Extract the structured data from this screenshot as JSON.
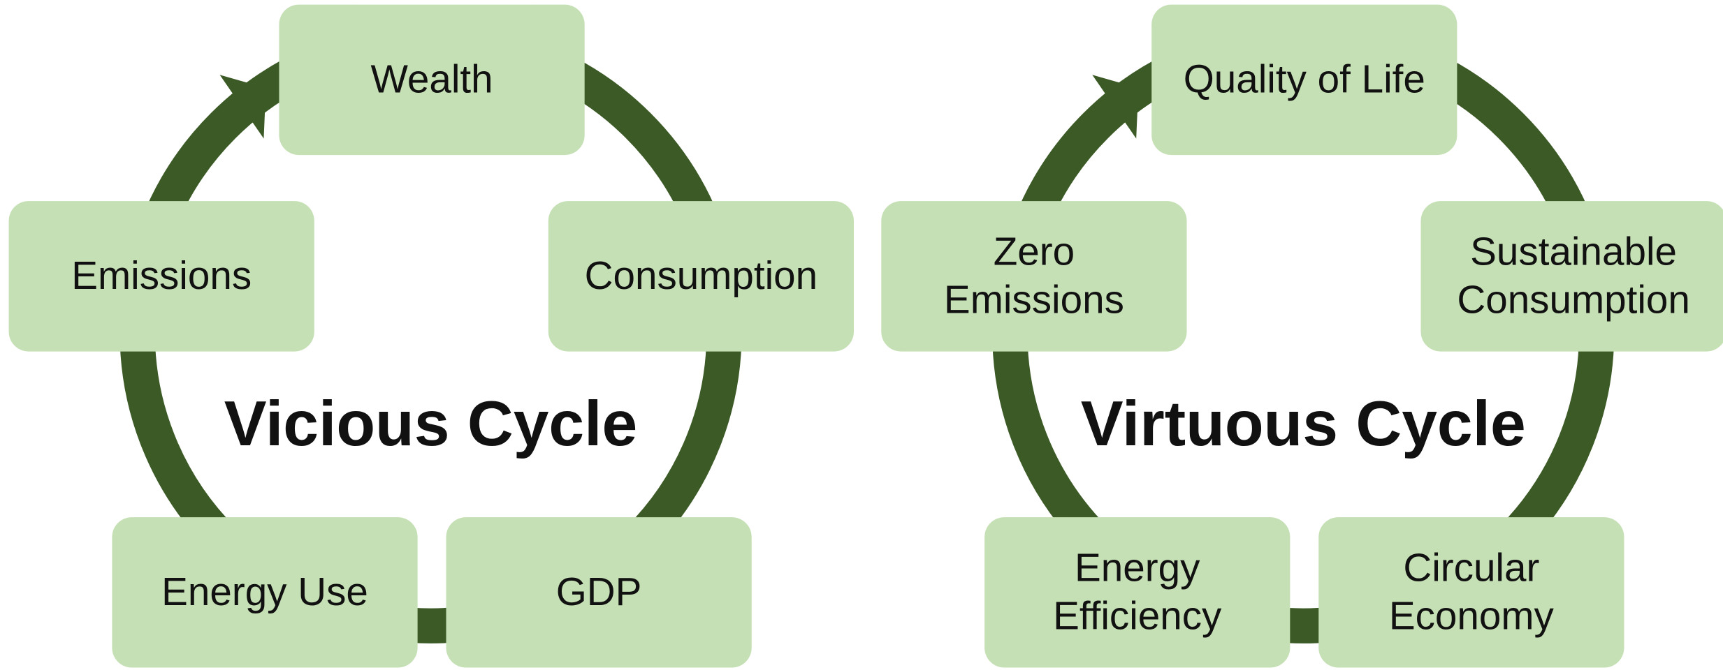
{
  "diagrams": [
    {
      "title": "Vicious Cycle",
      "nodes": [
        [
          "Wealth"
        ],
        [
          "Consumption"
        ],
        [
          "GDP"
        ],
        [
          "Energy Use"
        ],
        [
          "Emissions"
        ]
      ]
    },
    {
      "title": "Virtuous Cycle",
      "nodes": [
        [
          "Quality of Life"
        ],
        [
          "Sustainable",
          "Consumption"
        ],
        [
          "Circular",
          "Economy"
        ],
        [
          "Energy",
          "Efficiency"
        ],
        [
          "Zero",
          "Emissions"
        ]
      ]
    }
  ]
}
